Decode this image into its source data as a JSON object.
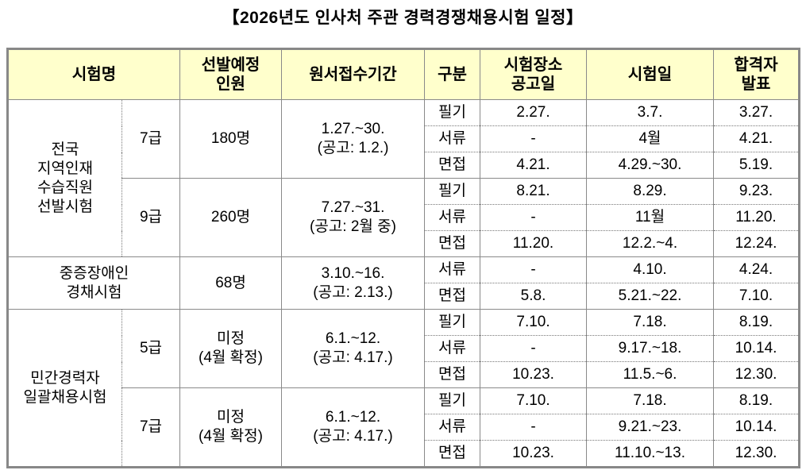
{
  "title": "【2026년도 인사처 주관 경력경쟁채용시험 일정】",
  "headers": {
    "exam_name": "시험명",
    "count": [
      "선발예정",
      "인원"
    ],
    "period": "원서접수기간",
    "type": "구분",
    "notice": [
      "시험장소",
      "공고일"
    ],
    "exam_date": "시험일",
    "result": [
      "합격자",
      "발표"
    ]
  },
  "groups": [
    {
      "name": [
        "전국",
        "지역인재",
        "수습직원",
        "선발시험"
      ],
      "grades": [
        {
          "grade": "7급",
          "count": [
            "180명"
          ],
          "period": [
            "1.27.~30.",
            "(공고:  1.2.)"
          ],
          "stages": [
            {
              "type": "필기",
              "notice": "2.27.",
              "exam": "3.7.",
              "result": "3.27."
            },
            {
              "type": "서류",
              "notice": "-",
              "exam": "4월",
              "result": "4.21."
            },
            {
              "type": "면접",
              "notice": "4.21.",
              "exam": "4.29.~30.",
              "result": "5.19."
            }
          ]
        },
        {
          "grade": "9급",
          "count": [
            "260명"
          ],
          "period": [
            "7.27.~31.",
            "(공고:  2월  중)"
          ],
          "stages": [
            {
              "type": "필기",
              "notice": "8.21.",
              "exam": "8.29.",
              "result": "9.23."
            },
            {
              "type": "서류",
              "notice": "-",
              "exam": "11월",
              "result": "11.20."
            },
            {
              "type": "면접",
              "notice": "11.20.",
              "exam": "12.2.~4.",
              "result": "12.24."
            }
          ]
        }
      ]
    },
    {
      "name": [
        "중증장애인",
        "경채시험"
      ],
      "grades": [
        {
          "grade": null,
          "count": [
            "68명"
          ],
          "period": [
            "3.10.~16.",
            "(공고:  2.13.)"
          ],
          "stages": [
            {
              "type": "서류",
              "notice": "-",
              "exam": "4.10.",
              "result": "4.24."
            },
            {
              "type": "면접",
              "notice": "5.8.",
              "exam": "5.21.~22.",
              "result": "7.10."
            }
          ]
        }
      ]
    },
    {
      "name": [
        "민간경력자",
        "일괄채용시험"
      ],
      "grades": [
        {
          "grade": "5급",
          "count": [
            "미정",
            "(4월  확정)"
          ],
          "period": [
            "6.1.~12.",
            "(공고:  4.17.)"
          ],
          "stages": [
            {
              "type": "필기",
              "notice": "7.10.",
              "exam": "7.18.",
              "result": "8.19."
            },
            {
              "type": "서류",
              "notice": "-",
              "exam": "9.17.~18.",
              "result": "10.14."
            },
            {
              "type": "면접",
              "notice": "10.23.",
              "exam": "11.5.~6.",
              "result": "12.30."
            }
          ]
        },
        {
          "grade": "7급",
          "count": [
            "미정",
            "(4월  확정)"
          ],
          "period": [
            "6.1.~12.",
            "(공고:  4.17.)"
          ],
          "stages": [
            {
              "type": "필기",
              "notice": "7.10.",
              "exam": "7.18.",
              "result": "8.19."
            },
            {
              "type": "서류",
              "notice": "-",
              "exam": "9.21.~23.",
              "result": "10.14."
            },
            {
              "type": "면접",
              "notice": "10.23.",
              "exam": "11.10.~13.",
              "result": "12.30."
            }
          ]
        }
      ]
    }
  ]
}
